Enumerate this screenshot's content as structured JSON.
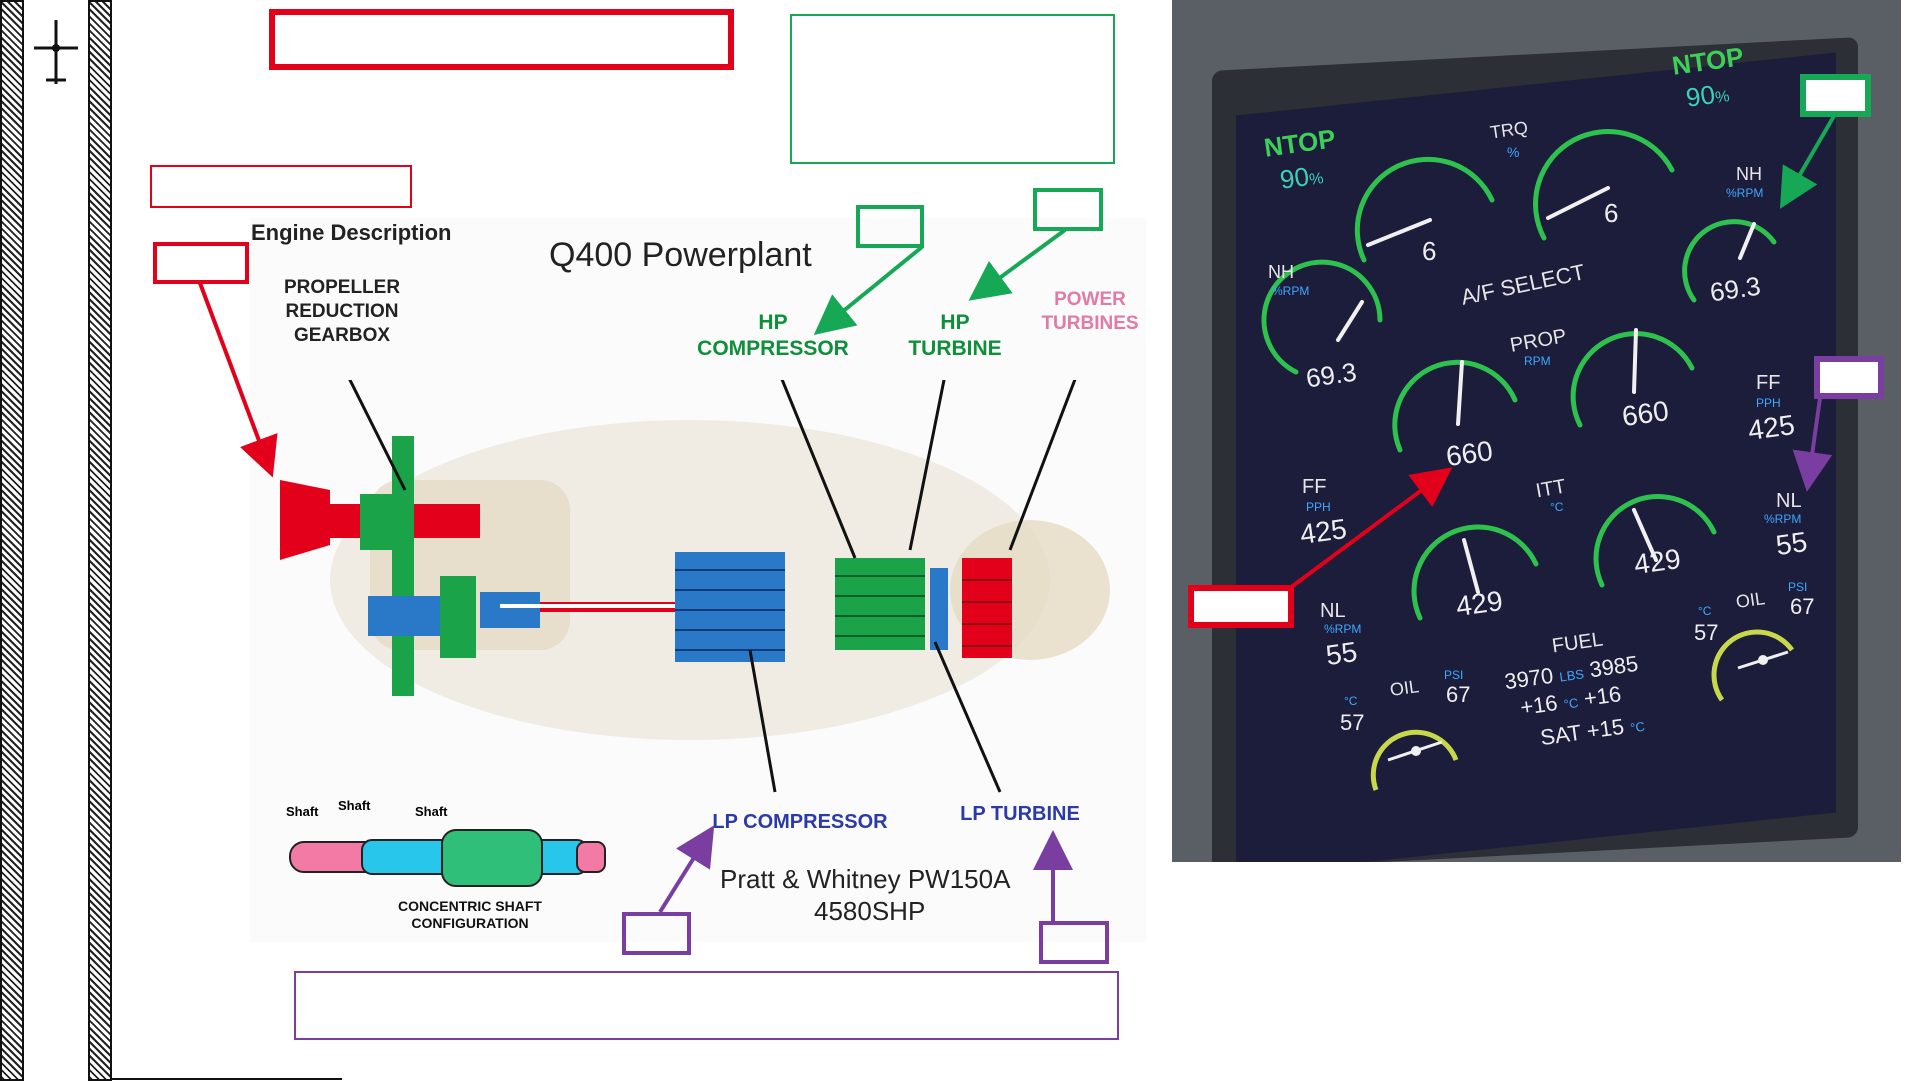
{
  "section_title": "Engine Description",
  "diagram": {
    "title": "Q400 Powerplant",
    "labels": {
      "gearbox": "PROPELLER\nREDUCTION\nGEARBOX",
      "hp_compressor": "HP\nCOMPRESSOR",
      "hp_turbine": "HP\nTURBINE",
      "power_turbines": "POWER\nTURBINES",
      "lp_compressor": "LP COMPRESSOR",
      "lp_turbine": "LP TURBINE"
    },
    "shaft_labels": [
      "Shaft",
      "Shaft",
      "Shaft"
    ],
    "shaft_caption": "CONCENTRIC SHAFT\nCONFIGURATION",
    "engine_name": "Pratt & Whitney PW150A",
    "engine_power": "4580SHP"
  },
  "colors": {
    "red": "#e3001b",
    "green": "#16a855",
    "purple": "#7a3ea1",
    "screen": "#1b1d3b"
  },
  "display": {
    "ntop_label": "NTOP",
    "ntop_left": "90",
    "ntop_right": "90",
    "percent_unit": "%",
    "trq_label": "TRQ",
    "trq_left": "6",
    "trq_right": "6",
    "af_select": "A/F SELECT",
    "nh_label": "NH",
    "nh_unit": "%RPM",
    "nh_left": "69.3",
    "nh_right": "69.3",
    "prop_label": "PROP",
    "prop_unit": "RPM",
    "prop_left": "660",
    "prop_right": "660",
    "ff_label": "FF",
    "ff_unit": "PPH",
    "ff_left": "425",
    "ff_right": "425",
    "itt_label": "ITT",
    "itt_unit": "°C",
    "itt_left": "429",
    "itt_right": "429",
    "nl_label": "NL",
    "nl_unit": "%RPM",
    "nl_left": "55",
    "nl_right": "55",
    "oil_label": "OIL",
    "oil_temp_unit": "°C",
    "oil_psi_unit": "PSI",
    "oil_temp_left": "57",
    "oil_psi_left": "67",
    "oil_temp_right": "57",
    "oil_psi_right": "67",
    "fuel_label": "FUEL",
    "fuel_left": "3970",
    "fuel_unit": "LBS",
    "fuel_right": "3985",
    "fuel_temp_left": "+16",
    "fuel_temp_unit": "°C",
    "fuel_temp_right": "+16",
    "sat_label": "SAT",
    "sat_value": "+15",
    "sat_unit": "°C"
  }
}
